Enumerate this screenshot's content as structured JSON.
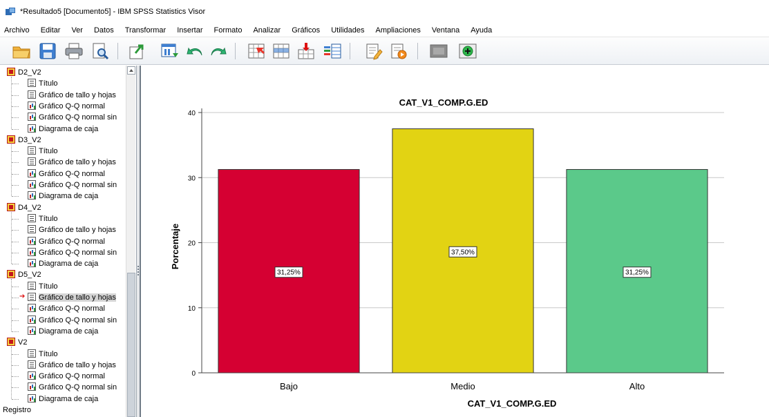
{
  "window": {
    "title": "*Resultado5 [Documento5] - IBM SPSS Statistics Visor"
  },
  "menu": [
    "Archivo",
    "Editar",
    "Ver",
    "Datos",
    "Transformar",
    "Insertar",
    "Formato",
    "Analizar",
    "Gráficos",
    "Utilidades",
    "Ampliaciones",
    "Ventana",
    "Ayuda"
  ],
  "toolbar": {
    "buttons": [
      "open-icon",
      "save-icon",
      "print-icon",
      "print-preview-icon",
      "export-icon",
      "recall-dialog-icon",
      "undo-icon",
      "redo-icon",
      "goto-data-icon",
      "goto-case-icon",
      "goto-variable-icon",
      "variables-icon",
      "designate-window-icon",
      "script-icon",
      "hide-icon",
      "insert-icon"
    ]
  },
  "outline": {
    "groups": [
      {
        "name": "D2_V2",
        "items": [
          "Título",
          "Gráfico de tallo y hojas",
          "Gráfico Q-Q normal",
          "Gráfico Q-Q normal sin",
          "Diagrama de caja"
        ]
      },
      {
        "name": "D3_V2",
        "items": [
          "Título",
          "Gráfico de tallo y hojas",
          "Gráfico Q-Q normal",
          "Gráfico Q-Q normal sin",
          "Diagrama de caja"
        ]
      },
      {
        "name": "D4_V2",
        "items": [
          "Título",
          "Gráfico de tallo y hojas",
          "Gráfico Q-Q normal",
          "Gráfico Q-Q normal sin",
          "Diagrama de caja"
        ]
      },
      {
        "name": "D5_V2",
        "items": [
          "Título",
          "Gráfico de tallo y hojas",
          "Gráfico Q-Q normal",
          "Gráfico Q-Q normal sin",
          "Diagrama de caja"
        ]
      },
      {
        "name": "V2",
        "items": [
          "Título",
          "Gráfico de tallo y hojas",
          "Gráfico Q-Q normal",
          "Gráfico Q-Q normal sin",
          "Diagrama de caja"
        ]
      }
    ],
    "footer": "Registro",
    "selected": {
      "group": 3,
      "item": 1
    }
  },
  "chart_data": {
    "type": "bar",
    "title": "CAT_V1_COMP.G.ED",
    "xlabel": "CAT_V1_COMP.G.ED",
    "ylabel": "Porcentaje",
    "categories": [
      "Bajo",
      "Medio",
      "Alto"
    ],
    "values": [
      31.25,
      37.5,
      31.25
    ],
    "data_labels": [
      "31,25%",
      "37,50%",
      "31,25%"
    ],
    "colors": [
      "#d50032",
      "#e2d313",
      "#5bc98a"
    ],
    "ylim": [
      0,
      40
    ],
    "yticks": [
      0,
      10,
      20,
      30,
      40
    ],
    "grid": true
  }
}
